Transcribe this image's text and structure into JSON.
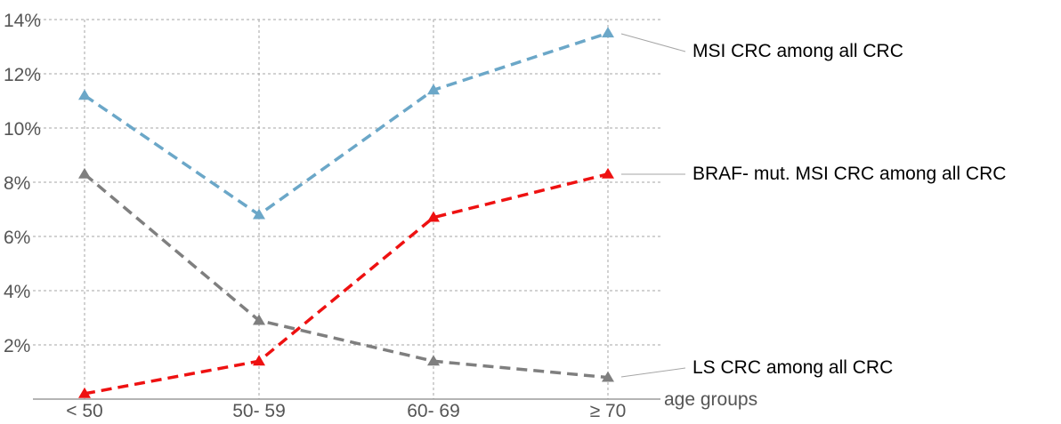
{
  "chart_data": {
    "type": "line",
    "categories": [
      "< 50",
      "50- 59",
      "60- 69",
      "≥ 70"
    ],
    "xlabel": "age groups",
    "ylabel": "",
    "ylim": [
      0,
      14
    ],
    "yticks": [
      2,
      4,
      6,
      8,
      10,
      12,
      14
    ],
    "ytick_labels": [
      "2%",
      "4%",
      "6%",
      "8%",
      "10%",
      "12%",
      "14%"
    ],
    "grid": true,
    "grid_style": "dashed",
    "line_style": "dashed",
    "marker": "triangle",
    "legend": "direct-labels-right",
    "series": [
      {
        "name": "MSI CRC among all CRC",
        "values": [
          11.2,
          6.8,
          11.4,
          13.5
        ],
        "color": "#6ba7c8"
      },
      {
        "name": "BRAF- mut. MSI CRC among all CRC",
        "values": [
          0.2,
          1.4,
          6.7,
          8.3
        ],
        "color": "#ee1111"
      },
      {
        "name": "LS CRC among all CRC",
        "values": [
          8.3,
          2.9,
          1.4,
          0.8
        ],
        "color": "#7f7f7f"
      }
    ]
  }
}
